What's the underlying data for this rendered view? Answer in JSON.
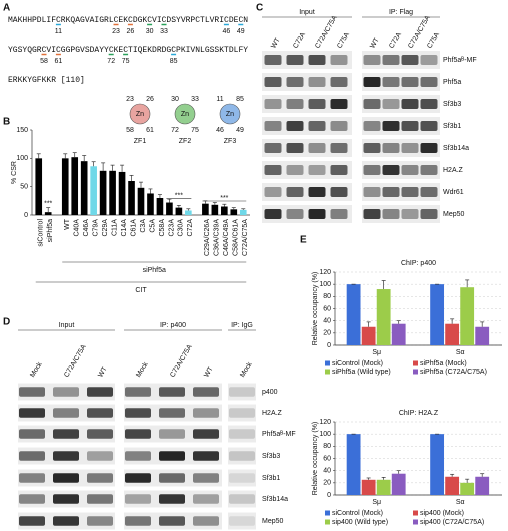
{
  "panel_labels": [
    "A",
    "B",
    "C",
    "D",
    "E"
  ],
  "panel_a": {
    "sequence_lines": [
      "MAKHHPDLIFCRKQAGVAIGRLCEKCDGKCVICDSYVRPCTLVRICDECN",
      "YGSYQGRCVICGGPGVSDAYYCKECTIQEKDRDGCPKIVNLGSSKTDLFY",
      "ERKKYGFKKR [110]"
    ],
    "zinc_fingers": [
      {
        "name": "ZF1",
        "label": "Zn",
        "color": "#e0703a",
        "fill": "#e8a4a0",
        "residues": [
          23,
          26,
          58,
          61
        ]
      },
      {
        "name": "ZF2",
        "label": "Zn",
        "color": "#2aa05a",
        "fill": "#93cf8f",
        "residues": [
          30,
          33,
          72,
          75
        ]
      },
      {
        "name": "ZF3",
        "label": "Zn",
        "color": "#2aa8d8",
        "fill": "#8fb8e8",
        "residues": [
          11,
          85,
          46,
          49
        ]
      }
    ]
  },
  "panel_c": {
    "headers": [
      "Input",
      "IP: Flag"
    ],
    "lanes": [
      "WT",
      "C72A",
      "C72A/C75A",
      "C75A"
    ],
    "proteins": [
      "Phf5aᴮ-MF",
      "Phf5a",
      "Sf3b3",
      "Sf3b1",
      "Sf3b14a",
      "H2A.Z",
      "Wdr61",
      "Mep50"
    ]
  },
  "panel_d": {
    "headers": [
      "Input",
      "IP: p400",
      "IP: IgG"
    ],
    "lanes": [
      "Mock",
      "C72A/C75A",
      "WT"
    ],
    "proteins": [
      "p400",
      "H2A.Z",
      "Phf5aᴮ-MF",
      "Sf3b3",
      "Sf3b1",
      "Sf3b14a",
      "Mep50"
    ]
  },
  "chart_data": [
    {
      "type": "bar",
      "y_label": "% CSR",
      "categories": [
        "siControl",
        "siPhf5a",
        "WT",
        "C40A",
        "C46A",
        "C79A",
        "C29A",
        "C11A",
        "C14A",
        "C61A",
        "C3A",
        "C5A",
        "C58A",
        "C23A",
        "C30A",
        "C72A",
        "C29A/C26A",
        "C36A/C39A",
        "C46A/C49A",
        "C58A/C61A",
        "C72A/C75A"
      ],
      "values": [
        100,
        5,
        100,
        102,
        95,
        86,
        78,
        78,
        76,
        60,
        48,
        38,
        30,
        22,
        13,
        8,
        20,
        18,
        15,
        10,
        9
      ],
      "errors": [
        8,
        8,
        8,
        8,
        10,
        8,
        14,
        10,
        12,
        10,
        10,
        8,
        6,
        6,
        4,
        3,
        5,
        4,
        4,
        3,
        2
      ],
      "colors": [
        "#000000",
        "#000000",
        "#000000",
        "#000000",
        "#000000",
        "#6fd8e8",
        "#000000",
        "#000000",
        "#000000",
        "#000000",
        "#000000",
        "#000000",
        "#000000",
        "#000000",
        "#000000",
        "#6fd8e8",
        "#000000",
        "#000000",
        "#000000",
        "#000000",
        "#6fd8e8"
      ],
      "annotations": [
        "***",
        "***",
        "***"
      ],
      "group_labels": [
        "siPhf5a",
        "CIT"
      ],
      "ylim": [
        0,
        150
      ],
      "yticks": [
        0,
        50,
        100,
        150
      ]
    },
    {
      "type": "bar",
      "title": "ChIP: p400",
      "y_label": "Relative occupancy (%)",
      "categories": [
        "Sμ",
        "Sα"
      ],
      "series": [
        {
          "name": "siControl (Mock)",
          "color": "#3b6fd8",
          "values": [
            100,
            100
          ],
          "errors": [
            0,
            0
          ]
        },
        {
          "name": "siPhf5a (Mock)",
          "color": "#d84a4a",
          "values": [
            30,
            35
          ],
          "errors": [
            8,
            8
          ]
        },
        {
          "name": "siPhf5a (Wild type)",
          "color": "#9ccc4a",
          "values": [
            92,
            95
          ],
          "errors": [
            14,
            12
          ]
        },
        {
          "name": "siPhf5a (C72A/C75A)",
          "color": "#8a5cc0",
          "values": [
            35,
            30
          ],
          "errors": [
            5,
            8
          ]
        }
      ],
      "ylim": [
        0,
        120
      ],
      "yticks": [
        0,
        20,
        40,
        60,
        80,
        100,
        120
      ],
      "grid": true
    },
    {
      "type": "bar",
      "title": "ChIP: H2A.Z",
      "y_label": "Relative occupancy (%)",
      "categories": [
        "Sμ",
        "Sα"
      ],
      "series": [
        {
          "name": "siControl (Mock)",
          "color": "#3b6fd8",
          "values": [
            100,
            100
          ],
          "errors": [
            0,
            0
          ]
        },
        {
          "name": "sip400 (Mock)",
          "color": "#d84a4a",
          "values": [
            25,
            30
          ],
          "errors": [
            3,
            4
          ]
        },
        {
          "name": "sip400 (Wild type)",
          "color": "#9ccc4a",
          "values": [
            25,
            20
          ],
          "errors": [
            4,
            6
          ]
        },
        {
          "name": "sip400 (C72A/C75A)",
          "color": "#8a5cc0",
          "values": [
            35,
            30
          ],
          "errors": [
            5,
            5
          ]
        }
      ],
      "ylim": [
        0,
        120
      ],
      "yticks": [
        0,
        20,
        40,
        60,
        80,
        100,
        120
      ],
      "grid": true
    }
  ]
}
